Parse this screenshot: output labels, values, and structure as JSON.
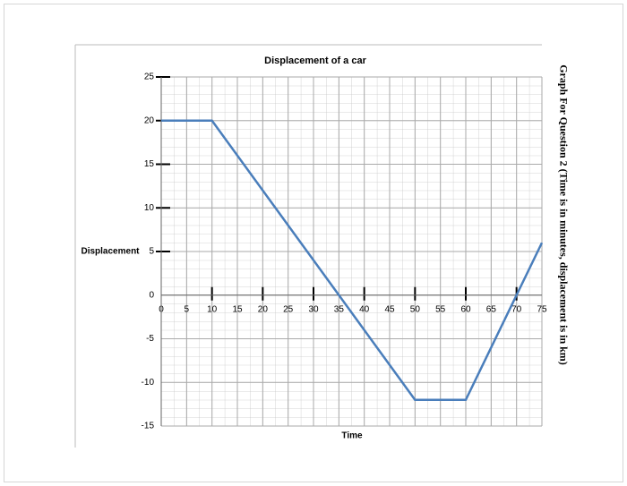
{
  "chart_data": {
    "type": "line",
    "title": "Displacement of a car",
    "x_label": "Time",
    "y_label": "Displacement",
    "side_note": "Graph For Question 2 (Time is in minutes, displacement is in km)",
    "x": [
      0,
      10,
      50,
      60,
      75
    ],
    "values": [
      20,
      20,
      -12,
      -12,
      6
    ],
    "color": "#4a7ebb",
    "xlim": [
      0,
      75
    ],
    "ylim": [
      -15,
      25
    ],
    "xticks": [
      0,
      5,
      10,
      15,
      20,
      25,
      30,
      35,
      40,
      45,
      50,
      55,
      60,
      65,
      70,
      75
    ],
    "yticks": [
      -15,
      -10,
      -5,
      0,
      5,
      10,
      15,
      20,
      25
    ],
    "grid": true
  }
}
